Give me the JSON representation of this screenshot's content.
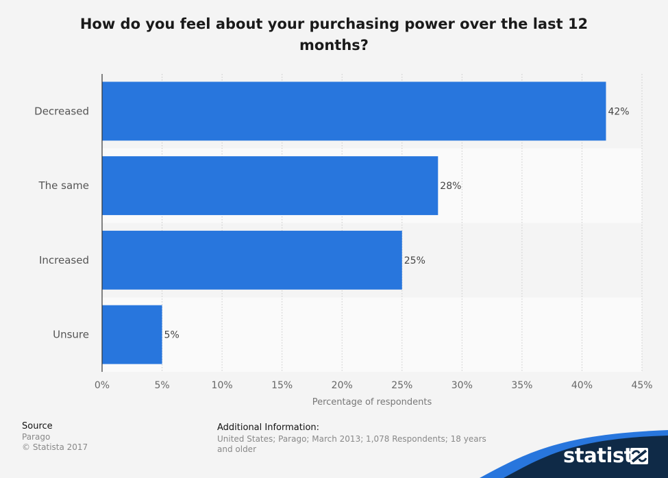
{
  "chart_data": {
    "type": "bar",
    "orientation": "horizontal",
    "title": "How do you feel about your purchasing power over the last 12 months?",
    "categories": [
      "Decreased",
      "The same",
      "Increased",
      "Unsure"
    ],
    "values": [
      42,
      28,
      25,
      5
    ],
    "value_labels": [
      "42%",
      "28%",
      "25%",
      "5%"
    ],
    "xlabel": "Percentage of respondents",
    "ylabel": "",
    "xlim": [
      0,
      45
    ],
    "x_ticks": [
      0,
      5,
      10,
      15,
      20,
      25,
      30,
      35,
      40,
      45
    ],
    "x_tick_labels": [
      "0%",
      "5%",
      "10%",
      "15%",
      "20%",
      "25%",
      "30%",
      "35%",
      "40%",
      "45%"
    ],
    "grid": true,
    "bar_color": "#2876dd"
  },
  "footer": {
    "source_header": "Source",
    "source_name": "Parago",
    "copyright": "© Statista 2017",
    "info_header": "Additional Information:",
    "info_text": "United States; Parago; March 2013; 1,078 Respondents; 18 years and older"
  },
  "brand": {
    "name": "statista",
    "dark_color": "#0f2a47",
    "accent_color": "#2876dd"
  }
}
